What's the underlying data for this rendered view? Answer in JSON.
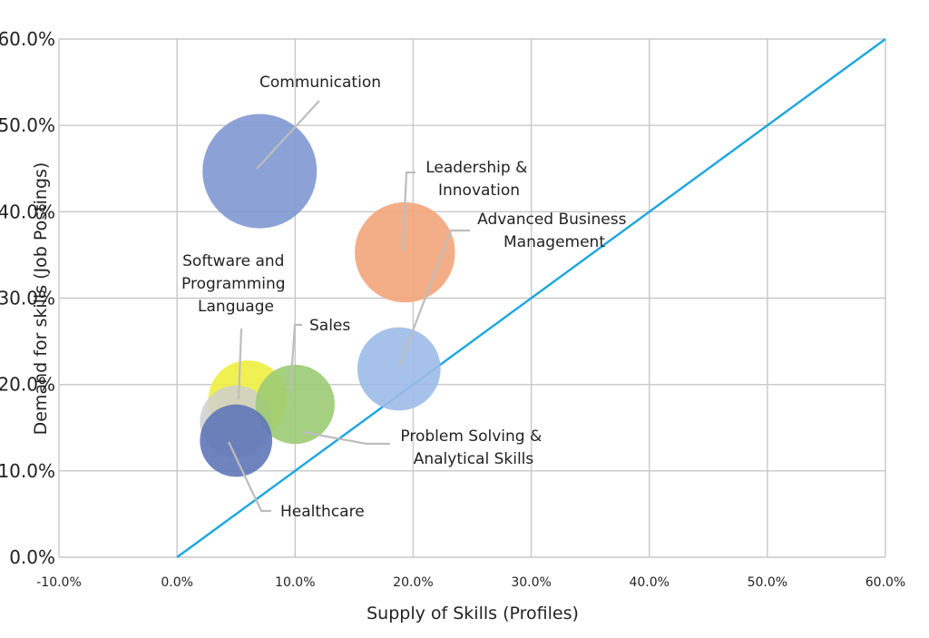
{
  "chart_data": {
    "type": "bubble",
    "xlabel": "Supply of Skills (Profiles)",
    "ylabel": "Demand for skills (Job Postings)",
    "xlim": [
      -0.1,
      0.6
    ],
    "ylim": [
      0.0,
      0.6
    ],
    "x_ticks": [
      "-10.0%",
      "0.0%",
      "10.0%",
      "20.0%",
      "30.0%",
      "40.0%",
      "50.0%",
      "60.0%"
    ],
    "y_ticks": [
      "0.0%",
      "10.0%",
      "20.0%",
      "30.0%",
      "40.0%",
      "50.0%",
      "60.0%"
    ],
    "grid": true,
    "reference_line": {
      "from": [
        0.0,
        0.0
      ],
      "to": [
        0.6,
        0.6
      ],
      "color": "#1ca6e0"
    },
    "series": [
      {
        "name": "Communication",
        "x": 0.07,
        "y": 0.447,
        "size": 1.0,
        "color": "#7f98d2"
      },
      {
        "name": "Leadership & Innovation",
        "x": 0.193,
        "y": 0.353,
        "size": 0.77,
        "color": "#f3a57a"
      },
      {
        "name": "Advanced Business Management",
        "x": 0.188,
        "y": 0.218,
        "size": 0.53,
        "color": "#9dbbe8"
      },
      {
        "name": "Sales",
        "x": 0.1,
        "y": 0.177,
        "size": 0.48,
        "color": "#9ccb73"
      },
      {
        "name": "Software and Programming Language",
        "x": 0.06,
        "y": 0.182,
        "size": 0.48,
        "color": "#f0ee40"
      },
      {
        "name": "Problem Solving & Analytical Skills",
        "x": 0.05,
        "y": 0.157,
        "size": 0.4,
        "color": "#cfcfcf"
      },
      {
        "name": "Healthcare",
        "x": 0.05,
        "y": 0.135,
        "size": 0.4,
        "color": "#5f77b8"
      }
    ]
  },
  "labels": {
    "communication": [
      "Communication"
    ],
    "leadership": [
      "Leadership &",
      "Innovation"
    ],
    "advanced": [
      "Advanced Business",
      "Management"
    ],
    "software": [
      "Software and",
      "Programming",
      "Language"
    ],
    "sales": [
      "Sales"
    ],
    "problem": [
      "Problem Solving &",
      "Analytical Skills"
    ],
    "healthcare": [
      "Healthcare"
    ]
  }
}
